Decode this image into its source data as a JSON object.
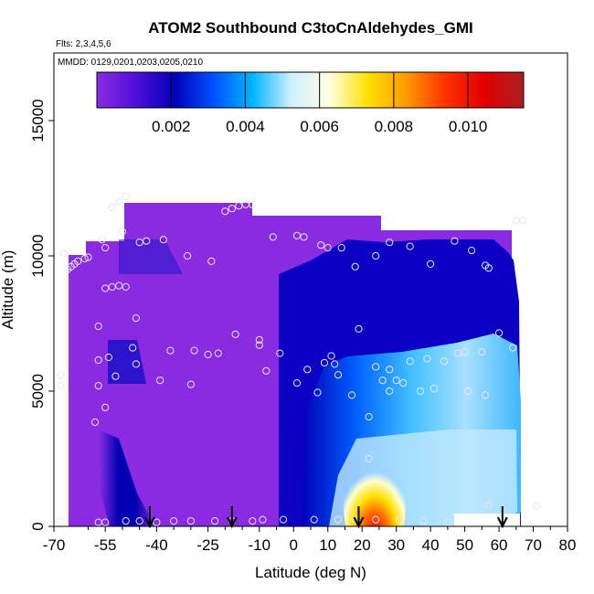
{
  "chart_data": {
    "type": "heatmap",
    "title": "ATOM2 Southbound C3toCnAldehydes_GMI",
    "subtitle_flights": "Flts: 2,3,4,5,6",
    "subtitle_dates": "MMDD: 0129,0201,0203,0205,0210",
    "xlabel": "Latitude (deg N)",
    "ylabel": "Altitude (m)",
    "xlim": [
      -70,
      80
    ],
    "ylim": [
      0,
      17500
    ],
    "x_ticks": [
      -70,
      -55,
      -40,
      -25,
      -10,
      0,
      10,
      20,
      30,
      40,
      50,
      60,
      70,
      80
    ],
    "x_tick_labels": [
      "-70",
      "-55",
      "-40",
      "-25",
      "-10",
      "0",
      "10",
      "20",
      "30",
      "40",
      "50",
      "60",
      "70",
      "80"
    ],
    "x_minor_ticks": [
      -60,
      -50,
      -45,
      -35,
      -30,
      -20,
      -15,
      -5,
      5,
      15,
      25,
      35,
      45,
      55,
      65,
      75
    ],
    "y_ticks": [
      0,
      5000,
      10000,
      15000
    ],
    "y_tick_labels": [
      "0",
      "5000",
      "10000",
      "15000"
    ],
    "colorbar": {
      "min": 0.0,
      "max": 0.0115,
      "ticks": [
        0.002,
        0.004,
        0.006,
        0.008,
        0.01
      ],
      "tick_labels": [
        "0.002",
        "0.004",
        "0.006",
        "0.008",
        "0.010"
      ],
      "colors": [
        "#8a2be2",
        "#5010d8",
        "#0000b8",
        "#0050ff",
        "#00b4ff",
        "#cfefff",
        "#ffffe0",
        "#ffe000",
        "#ff9800",
        "#ff3000",
        "#e00000",
        "#a82020"
      ]
    },
    "arrows_latitude": [
      -42,
      -18,
      19,
      61
    ],
    "observation_points": [
      {
        "x": -67,
        "y": 10100
      },
      {
        "x": -66,
        "y": 9500
      },
      {
        "x": -65,
        "y": 9600
      },
      {
        "x": -64,
        "y": 9700
      },
      {
        "x": -63,
        "y": 9800
      },
      {
        "x": -61,
        "y": 9900
      },
      {
        "x": -60,
        "y": 9950
      },
      {
        "x": -56,
        "y": 10600
      },
      {
        "x": -55,
        "y": 10300
      },
      {
        "x": -53,
        "y": 11800
      },
      {
        "x": -51,
        "y": 12000
      },
      {
        "x": -49,
        "y": 12200
      },
      {
        "x": -50,
        "y": 10900
      },
      {
        "x": -45,
        "y": 10500
      },
      {
        "x": -43,
        "y": 10550
      },
      {
        "x": -38,
        "y": 10600
      },
      {
        "x": -31,
        "y": 10000
      },
      {
        "x": -24,
        "y": 9800
      },
      {
        "x": -20,
        "y": 11650
      },
      {
        "x": -18,
        "y": 11750
      },
      {
        "x": -16,
        "y": 11850
      },
      {
        "x": -14,
        "y": 11900
      },
      {
        "x": -12,
        "y": 11900
      },
      {
        "x": -6,
        "y": 10700
      },
      {
        "x": 1,
        "y": 10750
      },
      {
        "x": 3,
        "y": 10700
      },
      {
        "x": 8,
        "y": 10400
      },
      {
        "x": 10,
        "y": 10300
      },
      {
        "x": 14,
        "y": 10300
      },
      {
        "x": 18,
        "y": 9600
      },
      {
        "x": 24,
        "y": 10000
      },
      {
        "x": 28,
        "y": 10500
      },
      {
        "x": 34,
        "y": 10350
      },
      {
        "x": 40,
        "y": 9700
      },
      {
        "x": 47,
        "y": 10550
      },
      {
        "x": 52,
        "y": 10200
      },
      {
        "x": 56,
        "y": 9650
      },
      {
        "x": 57,
        "y": 9550
      },
      {
        "x": 65,
        "y": 11300
      },
      {
        "x": 67,
        "y": 11300
      },
      {
        "x": -55,
        "y": 8800
      },
      {
        "x": -53,
        "y": 8850
      },
      {
        "x": -51,
        "y": 8900
      },
      {
        "x": -49,
        "y": 8850
      },
      {
        "x": -46,
        "y": 7700
      },
      {
        "x": -57,
        "y": 7400
      },
      {
        "x": -57,
        "y": 6150
      },
      {
        "x": -54,
        "y": 6250
      },
      {
        "x": -47,
        "y": 6600
      },
      {
        "x": -46,
        "y": 6000
      },
      {
        "x": -36,
        "y": 6500
      },
      {
        "x": -29,
        "y": 6500
      },
      {
        "x": -25,
        "y": 6350
      },
      {
        "x": -22,
        "y": 6400
      },
      {
        "x": -17,
        "y": 7100
      },
      {
        "x": -10,
        "y": 6900
      },
      {
        "x": -10,
        "y": 6700
      },
      {
        "x": -8,
        "y": 5750
      },
      {
        "x": -4,
        "y": 6400
      },
      {
        "x": 1,
        "y": 5300
      },
      {
        "x": 4,
        "y": 5800
      },
      {
        "x": 9,
        "y": 6050
      },
      {
        "x": 11,
        "y": 6300
      },
      {
        "x": 12,
        "y": 6000
      },
      {
        "x": 13,
        "y": 5600
      },
      {
        "x": 17,
        "y": 4850
      },
      {
        "x": 19,
        "y": 7300
      },
      {
        "x": 22,
        "y": 4050
      },
      {
        "x": 24,
        "y": 5900
      },
      {
        "x": 26,
        "y": 5400
      },
      {
        "x": 28,
        "y": 5800
      },
      {
        "x": 30,
        "y": 5400
      },
      {
        "x": 32,
        "y": 5300
      },
      {
        "x": 34,
        "y": 6100
      },
      {
        "x": 39,
        "y": 6200
      },
      {
        "x": 44,
        "y": 6100
      },
      {
        "x": 48,
        "y": 6400
      },
      {
        "x": 50,
        "y": 6450
      },
      {
        "x": 55,
        "y": 6450
      },
      {
        "x": 60,
        "y": 7150
      },
      {
        "x": 64,
        "y": 6600
      },
      {
        "x": -68,
        "y": 5600
      },
      {
        "x": -68,
        "y": 5200
      },
      {
        "x": -57,
        "y": 5200
      },
      {
        "x": -55,
        "y": 4400
      },
      {
        "x": -52,
        "y": 5550
      },
      {
        "x": -58,
        "y": 3850
      },
      {
        "x": -39,
        "y": 5400
      },
      {
        "x": -30,
        "y": 5250
      },
      {
        "x": 7,
        "y": 4950
      },
      {
        "x": 28,
        "y": 5000
      },
      {
        "x": 37,
        "y": 5000
      },
      {
        "x": 41,
        "y": 5100
      },
      {
        "x": 51,
        "y": 5000
      },
      {
        "x": 56,
        "y": 4850
      },
      {
        "x": 22,
        "y": 2500
      },
      {
        "x": -68,
        "y": 200
      },
      {
        "x": -57,
        "y": 150
      },
      {
        "x": -55,
        "y": 150
      },
      {
        "x": -49,
        "y": 200
      },
      {
        "x": -45,
        "y": 200
      },
      {
        "x": -40,
        "y": 150
      },
      {
        "x": -35,
        "y": 200
      },
      {
        "x": -30,
        "y": 200
      },
      {
        "x": -23,
        "y": 200
      },
      {
        "x": -18,
        "y": 200
      },
      {
        "x": -12,
        "y": 200
      },
      {
        "x": -9,
        "y": 250
      },
      {
        "x": -3,
        "y": 250
      },
      {
        "x": 6,
        "y": 250
      },
      {
        "x": 13,
        "y": 250
      },
      {
        "x": 18,
        "y": 250
      },
      {
        "x": 24,
        "y": 250
      },
      {
        "x": 31,
        "y": 250
      },
      {
        "x": 38,
        "y": 200
      },
      {
        "x": 45,
        "y": 150
      },
      {
        "x": 57,
        "y": 800
      },
      {
        "x": 71,
        "y": 750
      }
    ]
  }
}
